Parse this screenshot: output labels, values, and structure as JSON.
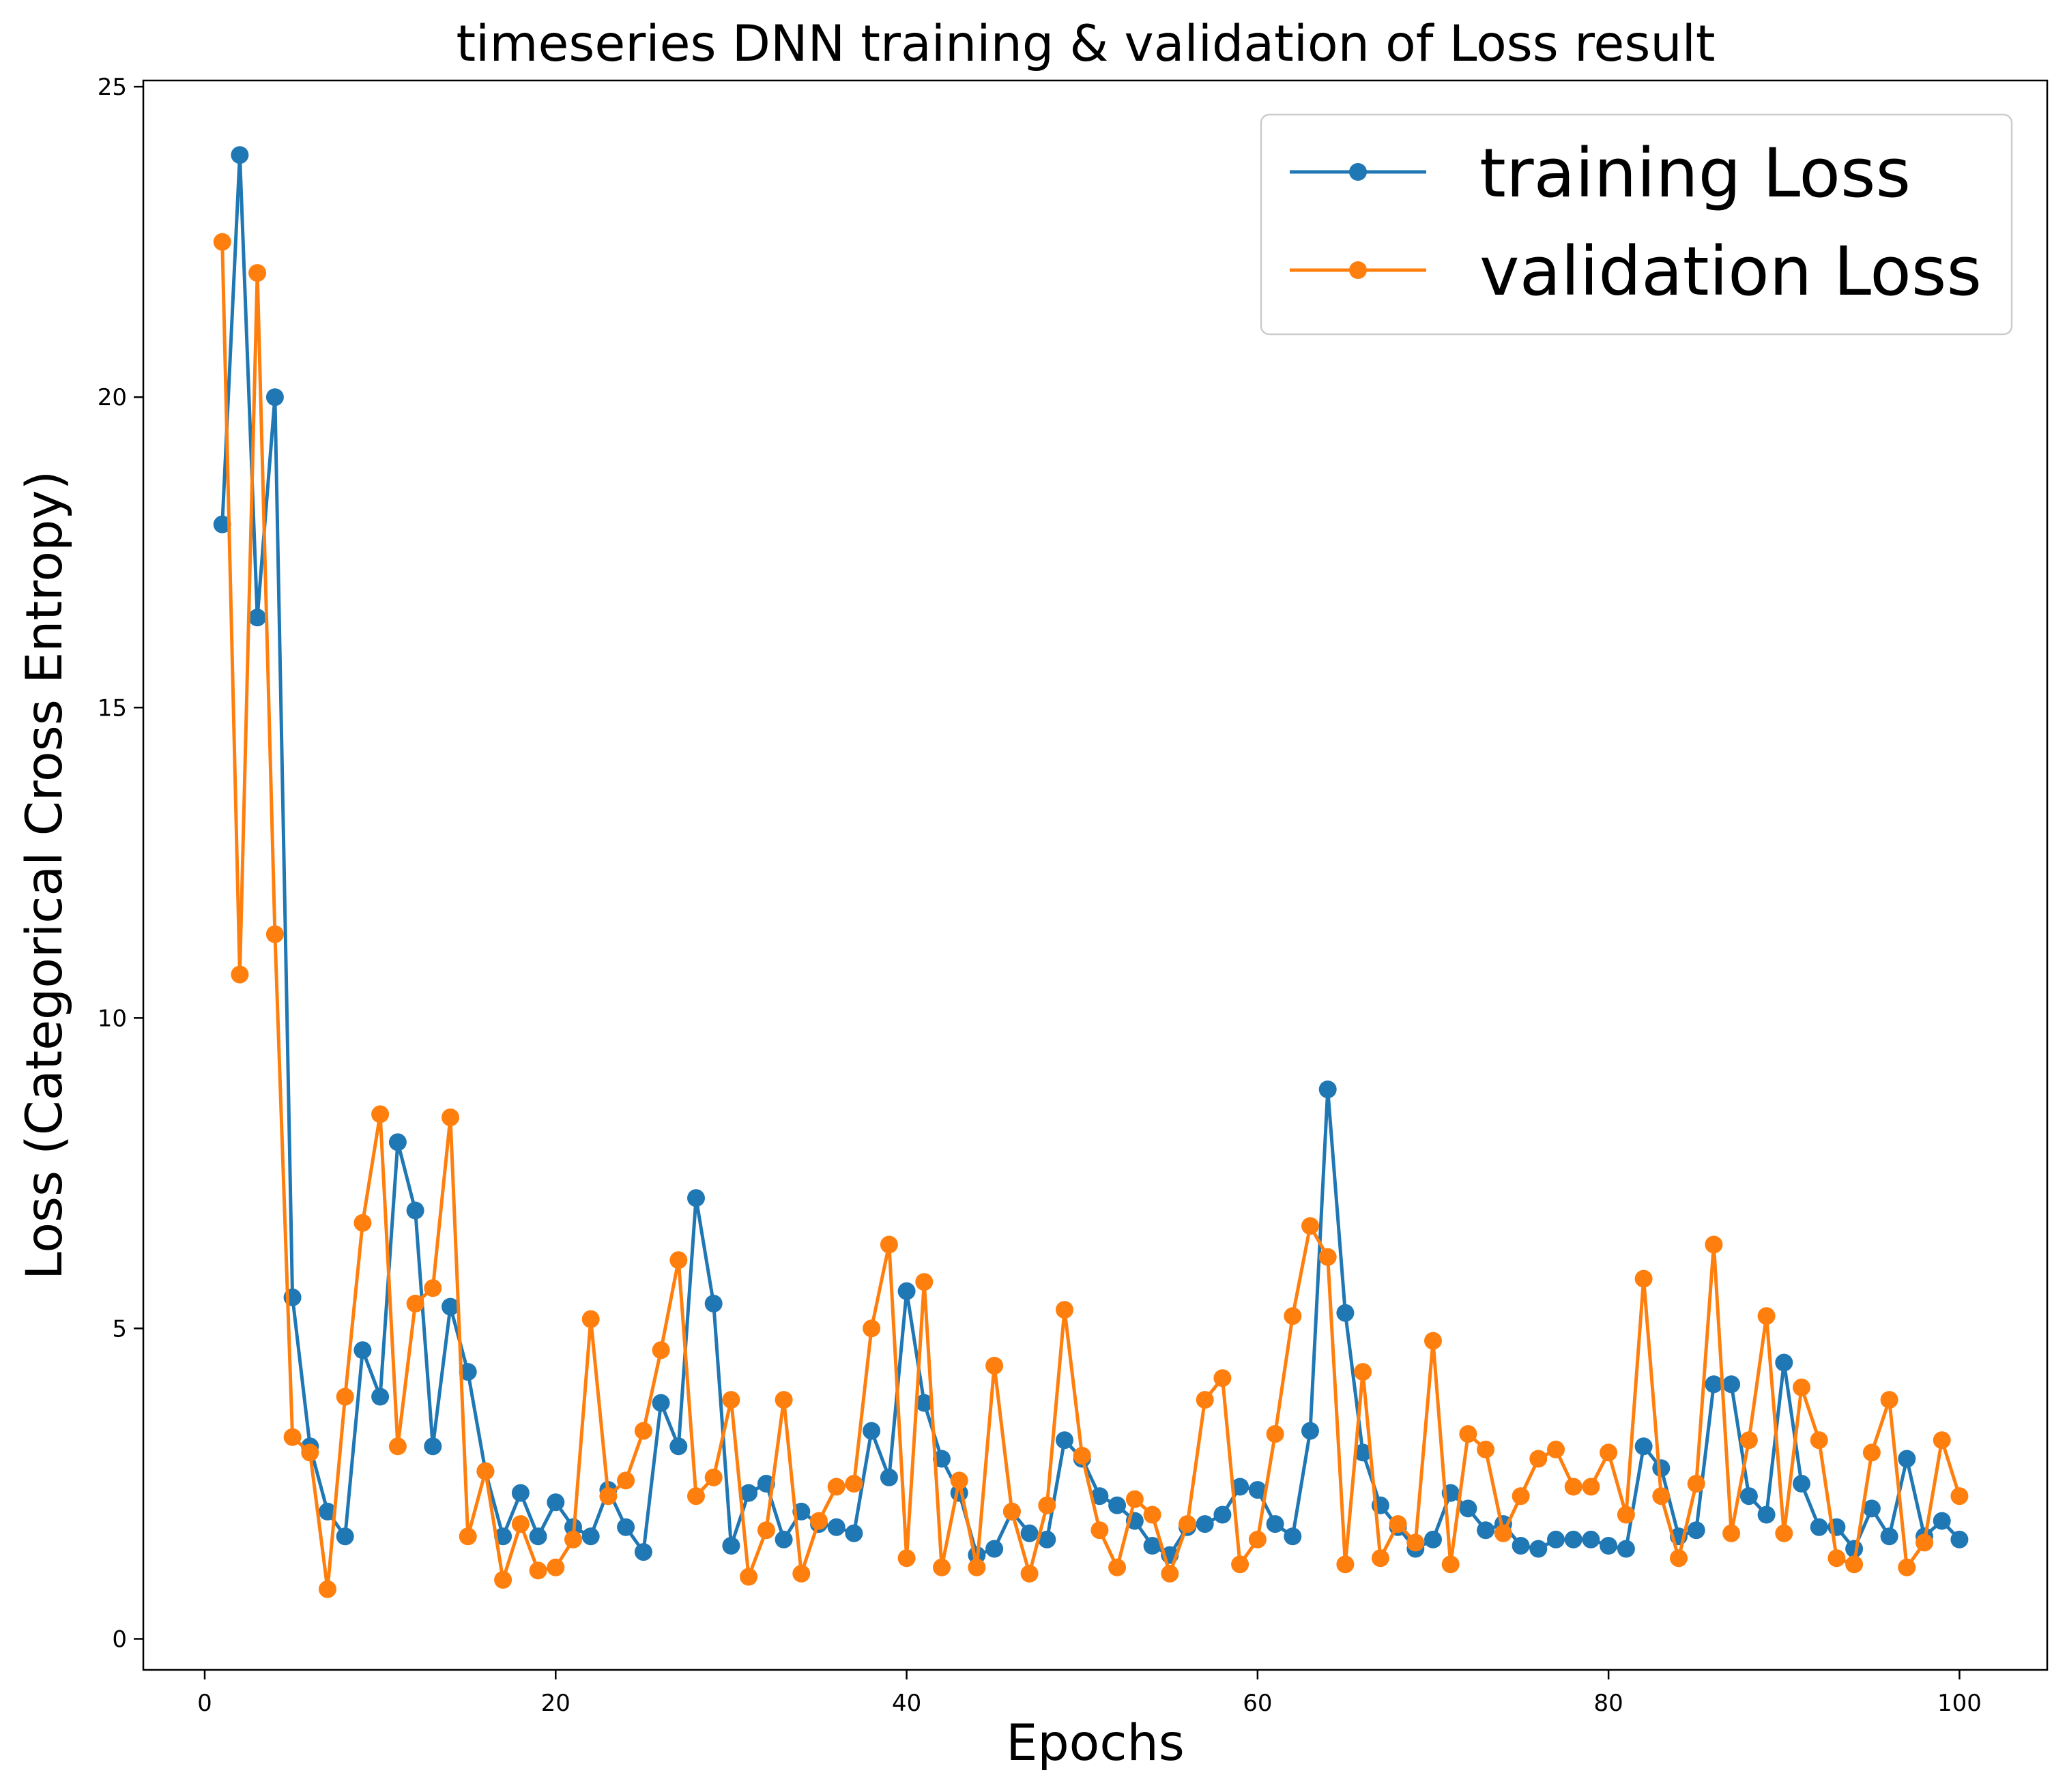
{
  "chart_data": {
    "type": "line",
    "title": "timeseries DNN training & validation of Loss result",
    "xlabel": "Epochs",
    "ylabel": "Loss (Categorical Cross Entropy)",
    "xlim": [
      -3.5,
      105
    ],
    "ylim": [
      -0.5,
      25.1
    ],
    "xticks": [
      0,
      20,
      40,
      60,
      80,
      100
    ],
    "yticks": [
      0,
      5,
      10,
      15,
      20,
      25
    ],
    "grid": false,
    "legend_position": "top-right",
    "markers": true,
    "x": [
      1,
      2,
      3,
      4,
      5,
      6,
      7,
      8,
      9,
      10,
      11,
      12,
      13,
      14,
      15,
      16,
      17,
      18,
      19,
      20,
      21,
      22,
      23,
      24,
      25,
      26,
      27,
      28,
      29,
      30,
      31,
      32,
      33,
      34,
      35,
      36,
      37,
      38,
      39,
      40,
      41,
      42,
      43,
      44,
      45,
      46,
      47,
      48,
      49,
      50,
      51,
      52,
      53,
      54,
      55,
      56,
      57,
      58,
      59,
      60,
      61,
      62,
      63,
      64,
      65,
      66,
      67,
      68,
      69,
      70,
      71,
      72,
      73,
      74,
      75,
      76,
      77,
      78,
      79,
      80,
      81,
      82,
      83,
      84,
      85,
      86,
      87,
      88,
      89,
      90,
      91,
      92,
      93,
      94,
      95,
      96,
      97,
      98,
      99,
      100
    ],
    "series": [
      {
        "name": "training Loss",
        "color": "#1f77b4",
        "values": [
          17.95,
          23.9,
          16.45,
          20.0,
          5.5,
          3.1,
          2.05,
          1.65,
          4.65,
          3.9,
          8.0,
          6.9,
          3.1,
          5.35,
          4.3,
          2.7,
          1.65,
          2.35,
          1.65,
          2.2,
          1.8,
          1.65,
          2.4,
          1.8,
          1.4,
          3.8,
          3.1,
          7.1,
          5.4,
          1.5,
          2.35,
          2.5,
          1.6,
          2.05,
          1.85,
          1.8,
          1.7,
          3.35,
          2.6,
          5.6,
          3.8,
          2.9,
          2.35,
          1.35,
          1.45,
          2.05,
          1.7,
          1.6,
          3.2,
          2.9,
          2.3,
          2.15,
          1.9,
          1.5,
          1.35,
          1.8,
          1.85,
          2.0,
          2.45,
          2.4,
          1.85,
          1.65,
          3.35,
          8.85,
          5.25,
          3.0,
          2.15,
          1.8,
          1.45,
          1.6,
          2.35,
          2.1,
          1.75,
          1.85,
          1.5,
          1.45,
          1.6,
          1.6,
          1.6,
          1.5,
          1.45,
          3.1,
          2.75,
          1.65,
          1.75,
          4.1,
          4.1,
          2.3,
          2.0,
          4.45,
          2.5,
          1.8,
          1.8,
          1.45,
          2.1,
          1.65,
          2.9,
          1.65,
          1.9,
          1.6
        ]
      },
      {
        "name": "validation Loss",
        "color": "#ff7f0e",
        "values": [
          22.5,
          10.7,
          22.0,
          11.35,
          3.25,
          3.0,
          0.8,
          3.9,
          6.7,
          8.45,
          3.1,
          5.4,
          5.65,
          8.4,
          1.65,
          2.7,
          0.95,
          1.85,
          1.1,
          1.15,
          1.6,
          5.15,
          2.3,
          2.55,
          3.35,
          4.65,
          6.1,
          2.3,
          2.6,
          3.85,
          1.0,
          1.75,
          3.85,
          1.05,
          1.9,
          2.45,
          2.5,
          5.0,
          6.35,
          1.3,
          5.75,
          1.15,
          2.55,
          1.15,
          4.4,
          2.05,
          1.05,
          2.15,
          5.3,
          2.95,
          1.75,
          1.15,
          2.25,
          2.0,
          1.05,
          1.85,
          3.85,
          4.2,
          1.2,
          1.6,
          3.3,
          5.2,
          6.65,
          6.15,
          1.2,
          4.3,
          1.3,
          1.85,
          1.55,
          4.8,
          1.2,
          3.3,
          3.05,
          1.7,
          2.3,
          2.9,
          3.05,
          2.45,
          2.45,
          3.0,
          2.0,
          5.8,
          2.3,
          1.3,
          2.5,
          6.35,
          1.7,
          3.2,
          5.2,
          1.7,
          4.05,
          3.2,
          1.3,
          1.2,
          3.0,
          3.85,
          1.15,
          1.55,
          3.2,
          2.3
        ]
      }
    ]
  }
}
